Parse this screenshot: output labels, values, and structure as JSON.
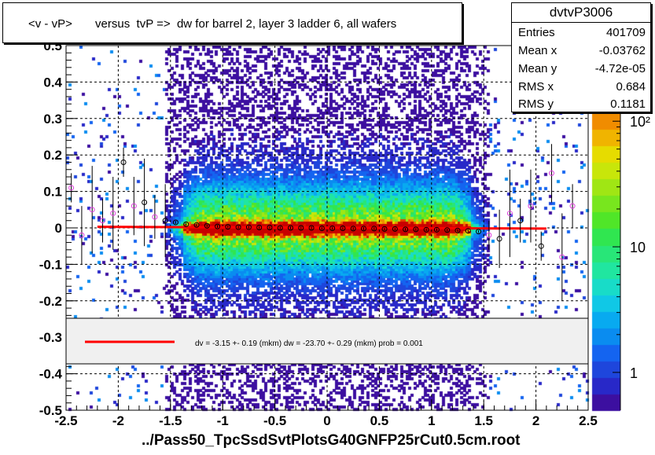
{
  "title": "<v - vP>       versus  tvP =>  dw for barrel 2, layer 3 ladder 6, all wafers",
  "stats": {
    "name": "dvtvP3006",
    "rows": [
      {
        "label": "Entries",
        "value": "401709"
      },
      {
        "label": "Mean x",
        "value": "-0.03762"
      },
      {
        "label": "Mean y",
        "value": "-4.72e-05"
      },
      {
        "label": "RMS x",
        "value": "0.684"
      },
      {
        "label": "RMS y",
        "value": "0.1181"
      }
    ]
  },
  "fit_legend": "dv =   -3.15 +-  0.19 (mkm) dw =  -23.70 +-  0.29 (mkm) prob = 0.001",
  "x_label": "../Pass50_TpcSsdSvtPlotsG40GNFP25rCut0.5cm.root",
  "colors": {
    "fit_line": "#ff0000",
    "profile_marker": "#000000",
    "profile_marker_alt": "#e040e0",
    "legend_bg": "#f0f0f0"
  },
  "chart_data": {
    "type": "heatmap",
    "xlim": [
      -2.5,
      2.5
    ],
    "ylim": [
      -0.5,
      0.5
    ],
    "x_ticks": [
      -2.5,
      -2,
      -1.5,
      -1,
      -0.5,
      0,
      0.5,
      1,
      1.5,
      2,
      2.5
    ],
    "x_tick_labels": [
      "-2.5",
      "-2",
      "-1.5",
      "-1",
      "-0.5",
      "0",
      "0.5",
      "1",
      "1.5",
      "2",
      "2.5"
    ],
    "y_ticks": [
      -0.5,
      -0.4,
      -0.3,
      -0.2,
      -0.1,
      0,
      0.1,
      0.2,
      0.3,
      0.4,
      0.5
    ],
    "y_tick_labels": [
      "-0.5",
      "-0.4",
      "-0.3",
      "-0.2",
      "-0.1",
      "0",
      "0.1",
      "0.2",
      "0.3",
      "0.4",
      "0.5"
    ],
    "grid": true,
    "z_scale": "log",
    "z_ticks": [
      1,
      10,
      100
    ],
    "z_tick_labels": [
      "1",
      "10",
      "10²"
    ],
    "z_range": [
      0.5,
      400
    ],
    "fit_line": {
      "x": [
        -2.2,
        2.1
      ],
      "y": [
        0.003,
        -0.002
      ]
    },
    "profile": {
      "x": [
        -2.45,
        -2.35,
        -2.25,
        -2.15,
        -2.05,
        -1.95,
        -1.85,
        -1.75,
        -1.65,
        -1.55,
        -1.45,
        -1.35,
        -1.25,
        -1.15,
        -1.05,
        -0.95,
        -0.85,
        -0.75,
        -0.65,
        -0.55,
        -0.45,
        -0.35,
        -0.25,
        -0.15,
        -0.05,
        0.05,
        0.15,
        0.25,
        0.35,
        0.45,
        0.55,
        0.65,
        0.75,
        0.85,
        0.95,
        1.05,
        1.15,
        1.25,
        1.35,
        1.45,
        1.55,
        1.65,
        1.75,
        1.85,
        1.95,
        2.05,
        2.15,
        2.25,
        2.35
      ],
      "y": [
        0.11,
        -0.02,
        0.05,
        0.02,
        0.04,
        0.18,
        0.06,
        0.07,
        0.03,
        0.02,
        0.015,
        0.01,
        0.008,
        0.006,
        0.004,
        0.003,
        0.002,
        0.002,
        0.001,
        0.001,
        0.0,
        0.0,
        0.0,
        0.0,
        -0.001,
        -0.001,
        -0.001,
        -0.002,
        -0.002,
        -0.002,
        -0.003,
        -0.003,
        -0.004,
        -0.004,
        -0.005,
        -0.005,
        -0.006,
        -0.007,
        -0.008,
        -0.01,
        -0.02,
        -0.03,
        0.04,
        0.02,
        0.06,
        -0.05,
        0.15,
        -0.08,
        0.06
      ]
    }
  }
}
